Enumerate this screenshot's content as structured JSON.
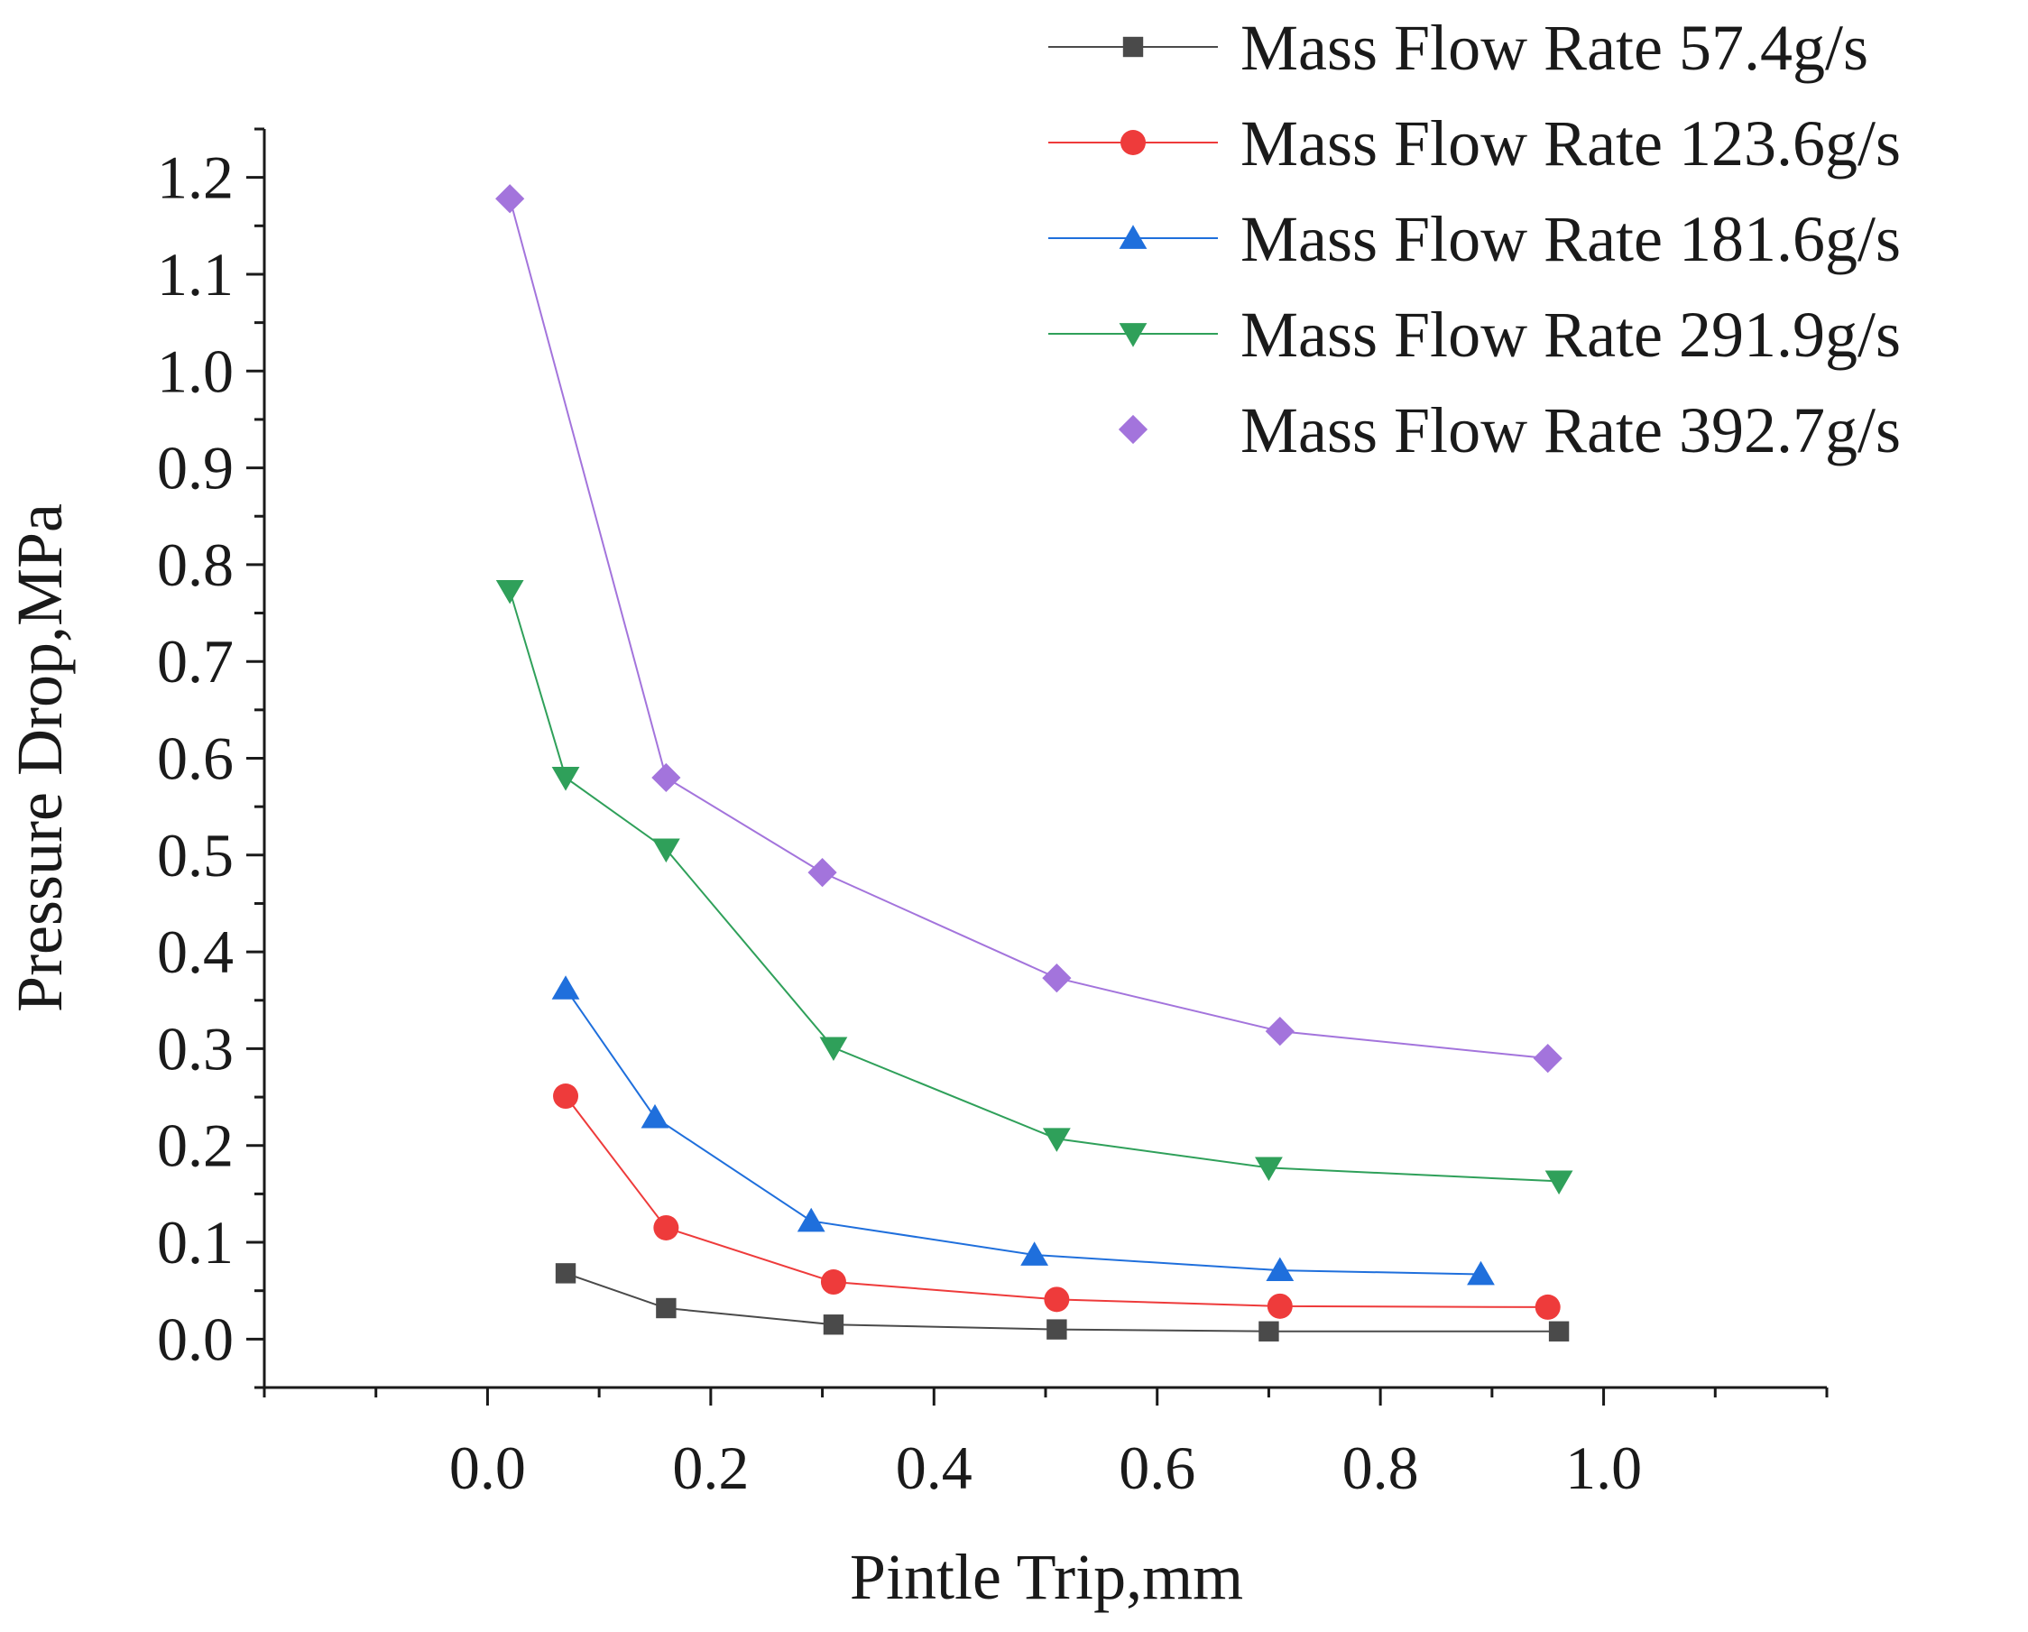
{
  "chart_data": {
    "type": "line",
    "xlabel": "Pintle Trip,mm",
    "ylabel": "Pressure Drop,MPa",
    "xlim": [
      -0.2,
      1.2
    ],
    "ylim": [
      -0.05,
      1.25
    ],
    "xticks": [
      0.0,
      0.2,
      0.4,
      0.6,
      0.8,
      1.0
    ],
    "xtick_labels": [
      "0.0",
      "0.2",
      "0.4",
      "0.6",
      "0.8",
      "1.0"
    ],
    "yticks": [
      0.0,
      0.1,
      0.2,
      0.3,
      0.4,
      0.5,
      0.6,
      0.7,
      0.8,
      0.9,
      1.0,
      1.1,
      1.2
    ],
    "ytick_labels": [
      "0.0",
      "0.1",
      "0.2",
      "0.3",
      "0.4",
      "0.5",
      "0.6",
      "0.7",
      "0.8",
      "0.9",
      "1.0",
      "1.1",
      "1.2"
    ],
    "legend_position": "top-right",
    "series": [
      {
        "name": "Mass Flow Rate 57.4g/s",
        "color": "#4a4a4a",
        "marker": "square",
        "x": [
          0.07,
          0.16,
          0.31,
          0.51,
          0.7,
          0.96
        ],
        "y": [
          0.068,
          0.032,
          0.015,
          0.01,
          0.008,
          0.008
        ]
      },
      {
        "name": "Mass Flow Rate 123.6g/s",
        "color": "#ee3b3b",
        "marker": "circle",
        "x": [
          0.07,
          0.16,
          0.31,
          0.51,
          0.71,
          0.95
        ],
        "y": [
          0.251,
          0.115,
          0.059,
          0.041,
          0.034,
          0.033
        ]
      },
      {
        "name": "Mass Flow Rate 181.6g/s",
        "color": "#1f6fdc",
        "marker": "triangle-up",
        "x": [
          0.07,
          0.15,
          0.29,
          0.49,
          0.71,
          0.89
        ],
        "y": [
          0.362,
          0.229,
          0.122,
          0.087,
          0.071,
          0.067
        ]
      },
      {
        "name": "Mass Flow Rate 291.9g/s",
        "color": "#2fa05a",
        "marker": "triangle-down",
        "x": [
          0.02,
          0.07,
          0.16,
          0.31,
          0.51,
          0.7,
          0.96
        ],
        "y": [
          0.773,
          0.58,
          0.506,
          0.301,
          0.207,
          0.177,
          0.163
        ]
      },
      {
        "name": "Mass Flow Rate 392.7g/s",
        "color": "#a374dc",
        "marker": "diamond",
        "x": [
          0.02,
          0.16,
          0.3,
          0.51,
          0.71,
          0.95
        ],
        "y": [
          1.178,
          0.58,
          0.482,
          0.373,
          0.318,
          0.29
        ]
      }
    ]
  }
}
